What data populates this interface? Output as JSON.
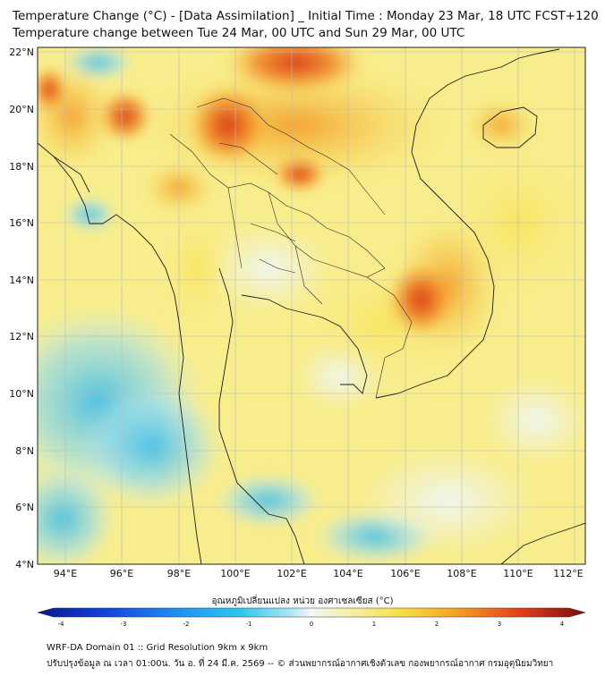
{
  "title_line1": "Temperature Change (°C) - [Data Assimilation] _ Initial Time : Monday 23 Mar, 18 UTC FCST+120",
  "title_line2": "Temperature change between Tue 24 Mar, 00 UTC and Sun 29 Mar, 00 UTC",
  "lat_labels": [
    "22°N",
    "20°N",
    "18°N",
    "16°N",
    "14°N",
    "12°N",
    "10°N",
    "8°N",
    "6°N",
    "4°N"
  ],
  "lon_labels": [
    "94°E",
    "96°E",
    "98°E",
    "100°E",
    "102°E",
    "104°E",
    "106°E",
    "108°E",
    "110°E",
    "112°E"
  ],
  "colorbar_label": "อุณหภูมิเปลี่ยนแปลง หน่วย องศาเซลเซียส (°C)",
  "colorbar_ticks": [
    "-4",
    "-3",
    "-2",
    "-1",
    "0",
    "1",
    "2",
    "3",
    "4"
  ],
  "footer_line1": "WRF-DA Domain 01 :: Grid Resolution 9km x 9km",
  "footer_line2": "ปรับปรุงข้อมูล ณ เวลา 01:00น. วัน อ. ที่ 24 มี.ค. 2569 -- © ส่วนพยากรณ์อากาศเชิงตัวเลข กองพยากรณ์อากาศ กรมอุตุนิยมวิทยา",
  "colors": {
    "warm_strong": "#d93a1a",
    "warm": "#f28a22",
    "yellow": "#f7e463",
    "neutral": "#f4f5f2",
    "cool": "#7fd6ef",
    "cool_strong": "#35b9e6"
  }
}
